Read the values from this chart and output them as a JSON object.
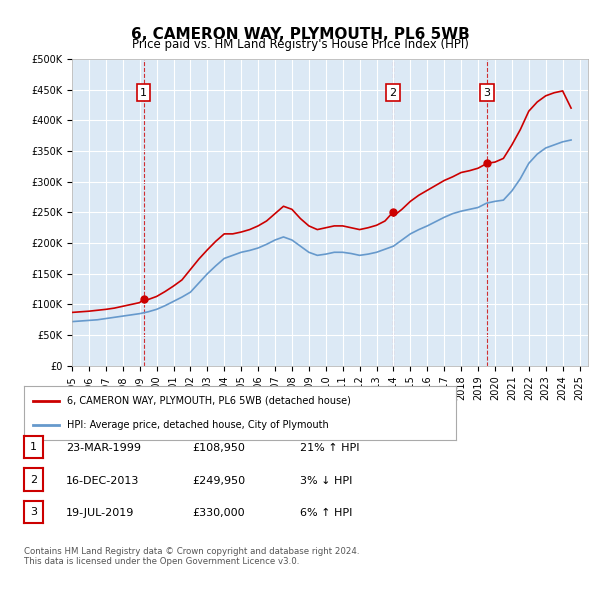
{
  "title": "6, CAMERON WAY, PLYMOUTH, PL6 5WB",
  "subtitle": "Price paid vs. HM Land Registry's House Price Index (HPI)",
  "background_color": "#dce9f5",
  "plot_bg_color": "#dce9f5",
  "ylim": [
    0,
    500000
  ],
  "yticks": [
    0,
    50000,
    100000,
    150000,
    200000,
    250000,
    300000,
    350000,
    400000,
    450000,
    500000
  ],
  "xlim_start": 1995.0,
  "xlim_end": 2025.5,
  "sale_dates": [
    1999.23,
    2013.96,
    2019.54
  ],
  "sale_prices": [
    108950,
    249950,
    330000
  ],
  "sale_labels": [
    "1",
    "2",
    "3"
  ],
  "red_line_color": "#cc0000",
  "blue_line_color": "#6699cc",
  "legend_red_label": "6, CAMERON WAY, PLYMOUTH, PL6 5WB (detached house)",
  "legend_blue_label": "HPI: Average price, detached house, City of Plymouth",
  "table_rows": [
    [
      "1",
      "23-MAR-1999",
      "£108,950",
      "21% ↑ HPI"
    ],
    [
      "2",
      "16-DEC-2013",
      "£249,950",
      "3% ↓ HPI"
    ],
    [
      "3",
      "19-JUL-2019",
      "£330,000",
      "6% ↑ HPI"
    ]
  ],
  "footnote": "Contains HM Land Registry data © Crown copyright and database right 2024.\nThis data is licensed under the Open Government Licence v3.0.",
  "hpi_years": [
    1995,
    1995.5,
    1996,
    1996.5,
    1997,
    1997.5,
    1998,
    1998.5,
    1999,
    1999.5,
    2000,
    2000.5,
    2001,
    2001.5,
    2002,
    2002.5,
    2003,
    2003.5,
    2004,
    2004.5,
    2005,
    2005.5,
    2006,
    2006.5,
    2007,
    2007.5,
    2008,
    2008.5,
    2009,
    2009.5,
    2010,
    2010.5,
    2011,
    2011.5,
    2012,
    2012.5,
    2013,
    2013.5,
    2014,
    2014.5,
    2015,
    2015.5,
    2016,
    2016.5,
    2017,
    2017.5,
    2018,
    2018.5,
    2019,
    2019.5,
    2020,
    2020.5,
    2021,
    2021.5,
    2022,
    2022.5,
    2023,
    2023.5,
    2024,
    2024.5
  ],
  "hpi_values": [
    72000,
    73000,
    74000,
    75000,
    77000,
    79000,
    81000,
    83000,
    85000,
    88000,
    92000,
    98000,
    105000,
    112000,
    120000,
    135000,
    150000,
    163000,
    175000,
    180000,
    185000,
    188000,
    192000,
    198000,
    205000,
    210000,
    205000,
    195000,
    185000,
    180000,
    182000,
    185000,
    185000,
    183000,
    180000,
    182000,
    185000,
    190000,
    195000,
    205000,
    215000,
    222000,
    228000,
    235000,
    242000,
    248000,
    252000,
    255000,
    258000,
    265000,
    268000,
    270000,
    285000,
    305000,
    330000,
    345000,
    355000,
    360000,
    365000,
    368000
  ],
  "red_years": [
    1995,
    1995.5,
    1996,
    1996.5,
    1997,
    1997.5,
    1998,
    1998.5,
    1999,
    1999.23,
    1999.5,
    2000,
    2000.5,
    2001,
    2001.5,
    2002,
    2002.5,
    2003,
    2003.5,
    2004,
    2004.5,
    2005,
    2005.5,
    2006,
    2006.5,
    2007,
    2007.5,
    2008,
    2008.5,
    2009,
    2009.5,
    2010,
    2010.5,
    2011,
    2011.5,
    2012,
    2012.5,
    2013,
    2013.5,
    2013.96,
    2014,
    2014.5,
    2015,
    2015.5,
    2016,
    2016.5,
    2017,
    2017.5,
    2018,
    2018.5,
    2019,
    2019.54,
    2020,
    2020.5,
    2021,
    2021.5,
    2022,
    2022.5,
    2023,
    2023.5,
    2024,
    2024.5
  ],
  "red_values": [
    87000,
    88000,
    89000,
    90500,
    92000,
    94000,
    97000,
    100000,
    103000,
    108950,
    108000,
    113000,
    121000,
    130000,
    140000,
    157000,
    174000,
    189000,
    203000,
    215000,
    215000,
    218000,
    222000,
    228000,
    236000,
    248000,
    260000,
    255000,
    240000,
    228000,
    222000,
    225000,
    228000,
    228000,
    225000,
    222000,
    225000,
    229000,
    236000,
    249950,
    244000,
    255000,
    268000,
    278000,
    286000,
    294000,
    302000,
    308000,
    315000,
    318000,
    322000,
    330000,
    332000,
    338000,
    360000,
    385000,
    415000,
    430000,
    440000,
    445000,
    448000,
    420000
  ]
}
